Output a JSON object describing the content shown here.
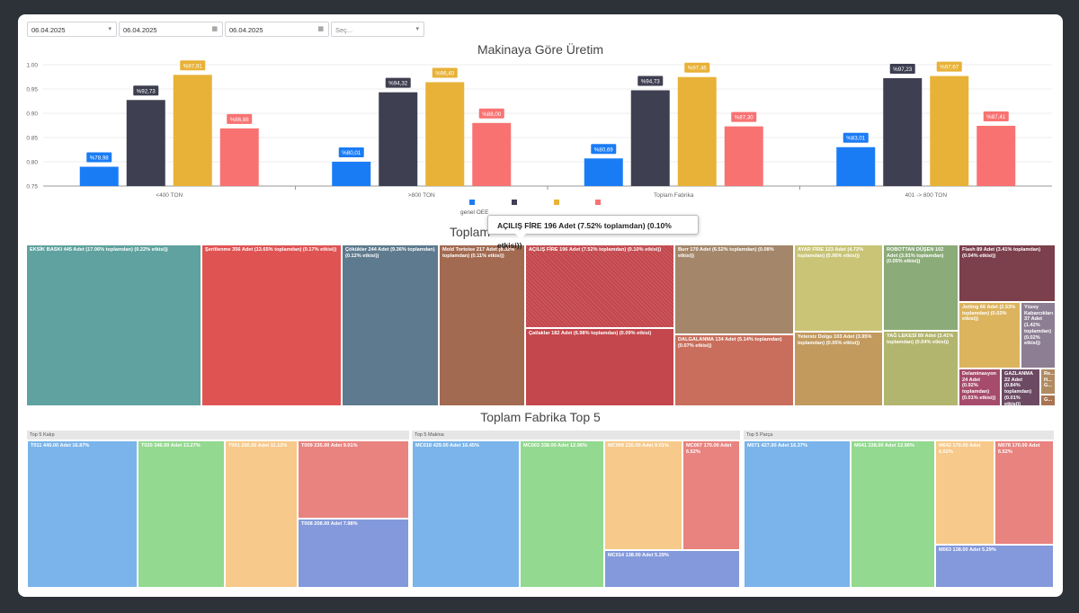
{
  "filters": {
    "date1": "06.04.2025",
    "date2": "06.04.2025",
    "date3": "06.04.2025",
    "select_placeholder": "Seç..."
  },
  "chart_title": "Makinaya Göre Üretim",
  "chart_data": {
    "type": "bar",
    "categories": [
      "<400 TON",
      ">800 TON",
      "Toplam Fabrika",
      "401 -> 800 TON"
    ],
    "ylim": [
      0.75,
      1.0
    ],
    "yticks": [
      "0.75",
      "0.80",
      "0.85",
      "0.90",
      "0.95",
      "1.00"
    ],
    "grid": true,
    "legend_position": "bottom",
    "series": [
      {
        "name": "genel OEE",
        "color": "#1a7cf5",
        "values": [
          0.7898,
          0.8001,
          0.8069,
          0.8301
        ],
        "labels": [
          "%78,98",
          "%80,01",
          "%80,69",
          "%83,01"
        ]
      },
      {
        "color": "#3f3f52",
        "values": [
          0.9273,
          0.9432,
          0.9473,
          0.9723
        ],
        "labels": [
          "%92,73",
          "%94,32",
          "%94,73",
          "%97,23"
        ]
      },
      {
        "color": "#e8b238",
        "values": [
          0.9791,
          0.964,
          0.9746,
          0.9767
        ],
        "labels": [
          "%97,91",
          "%96,40",
          "%97,46",
          "%97,67"
        ]
      },
      {
        "color": "#f87272",
        "values": [
          0.8688,
          0.88,
          0.873,
          0.8741
        ],
        "labels": [
          "%86,88",
          "%88,00",
          "%87,30",
          "%87,41"
        ]
      }
    ]
  },
  "tooltip": "AÇILIŞ FİRE 196 Adet (7.52% toplamdan) (0.10% etkisi))",
  "treemap_title": "Toplam",
  "treemap_cells": [
    {
      "label": "EKSİK BASKI 445 Adet (17.06% toplamdan) (0.22% etkisi))",
      "color": "#5fa29f"
    },
    {
      "label": "Şeritlenme 356 Adet (13.65% toplamdan) (0.17% etkisi))",
      "color": "#e05353"
    },
    {
      "label": "Çökükler 244 Adet (9.36% toplamdan) (0.12% etkisi))",
      "color": "#5e7a8e"
    },
    {
      "label": "Mold Tortoise 217 Adet (8.32% toplamdan) (0.11% etkisi))",
      "color": "#a26a51"
    },
    {
      "label": "AÇILIŞ FİRE 196 Adet (7.52% toplamdan) (0.10% etkisi))",
      "color": "#c3474c"
    },
    {
      "label": "Çatlaklar 182 Adet (6.98% toplamdan) (0.09% etkisi)",
      "color": "#c3474c"
    },
    {
      "label": "Burr 170 Adet (6.52% toplamdan) (0.08% etkisi))",
      "color": "#a4876a"
    },
    {
      "label": "DALGALANMA 134 Adet (5.14% toplamdan) (0.07% etkisi))",
      "color": "#c96e5c"
    },
    {
      "label": "AYAR FİRE 123 Adet (4.72% toplamdan) (0.06% etkisi))",
      "color": "#c9c476"
    },
    {
      "label": "Yetersiz Dolgu 103 Adet (3.95% toplamdan) (0.05% etkisi))",
      "color": "#c29a5e"
    },
    {
      "label": "ROBOTTAN DÜŞEN 102 Adet (3.91% toplamdan) (0.05% etkisi))",
      "color": "#8bab78"
    },
    {
      "label": "YAĞ LEKESİ 89 Adet (3.41% toplamdan) (0.04% etkisi))",
      "color": "#b2b56d"
    },
    {
      "label": "Flash 89 Adet (3.41% toplamdan) (0.04% etkisi))",
      "color": "#7c3f4c"
    },
    {
      "label": "Jetting 66 Adet (2.53% toplamdan) (0.03% etkisi))",
      "color": "#dcb45e"
    },
    {
      "label": "Yüzey Kabarcıkları 37 Adet (1.42% toplamdan) (0.02% etkisi))",
      "color": "#8d7e93"
    },
    {
      "label": "Delaminasyon 24 Adet (0.92% toplamdan) (0.01% etkisi))",
      "color": "#a64b6b"
    },
    {
      "label": "GAZLANMA 22 Adet (0.84% toplamdan) (0.01% etkisi))",
      "color": "#6c4a63"
    },
    {
      "label": "Re... H... G...",
      "color": "#b08a61"
    },
    {
      "label": "G...",
      "color": "#a97452"
    }
  ],
  "top5_title": "Toplam Fabrika Top 5",
  "top5_panels": [
    {
      "title": "Top 5 Kalıp",
      "cells": [
        {
          "label": "T011 440.00 Adet 16.87%",
          "color": "#7ab4ea"
        },
        {
          "label": "T020 346.00 Adet 13.27%",
          "color": "#93d98f"
        },
        {
          "label": "T001 290.00 Adet 11.12%",
          "color": "#f7c98a"
        },
        {
          "label": "T009 235.00 Adet 9.01%",
          "color": "#e8837f"
        },
        {
          "label": "T008 208.00 Adet 7.98%",
          "color": "#8399db"
        }
      ]
    },
    {
      "title": "Top 5 Makina",
      "cells": [
        {
          "label": "MC018 429.00 Adet 16.45%",
          "color": "#7ab4ea"
        },
        {
          "label": "MC003 338.00 Adet 12.96%",
          "color": "#93d98f"
        },
        {
          "label": "MC009 235.00 Adet 9.01%",
          "color": "#f7c98a"
        },
        {
          "label": "MC007 170.00 Adet 6.52%",
          "color": "#e8837f"
        },
        {
          "label": "MC014 138.00 Adet 5.29%",
          "color": "#8399db"
        }
      ]
    },
    {
      "title": "Top 5 Parça",
      "cells": [
        {
          "label": "M071 427.00 Adet 16.37%",
          "color": "#7ab4ea"
        },
        {
          "label": "M041 338.00 Adet 12.96%",
          "color": "#93d98f"
        },
        {
          "label": "M042 170.00 Adet 6.52%",
          "color": "#f7c98a"
        },
        {
          "label": "M078 170.00 Adet 6.52%",
          "color": "#e8837f"
        },
        {
          "label": "M063 138.00 Adet 5.29%",
          "color": "#8399db"
        }
      ]
    }
  ]
}
